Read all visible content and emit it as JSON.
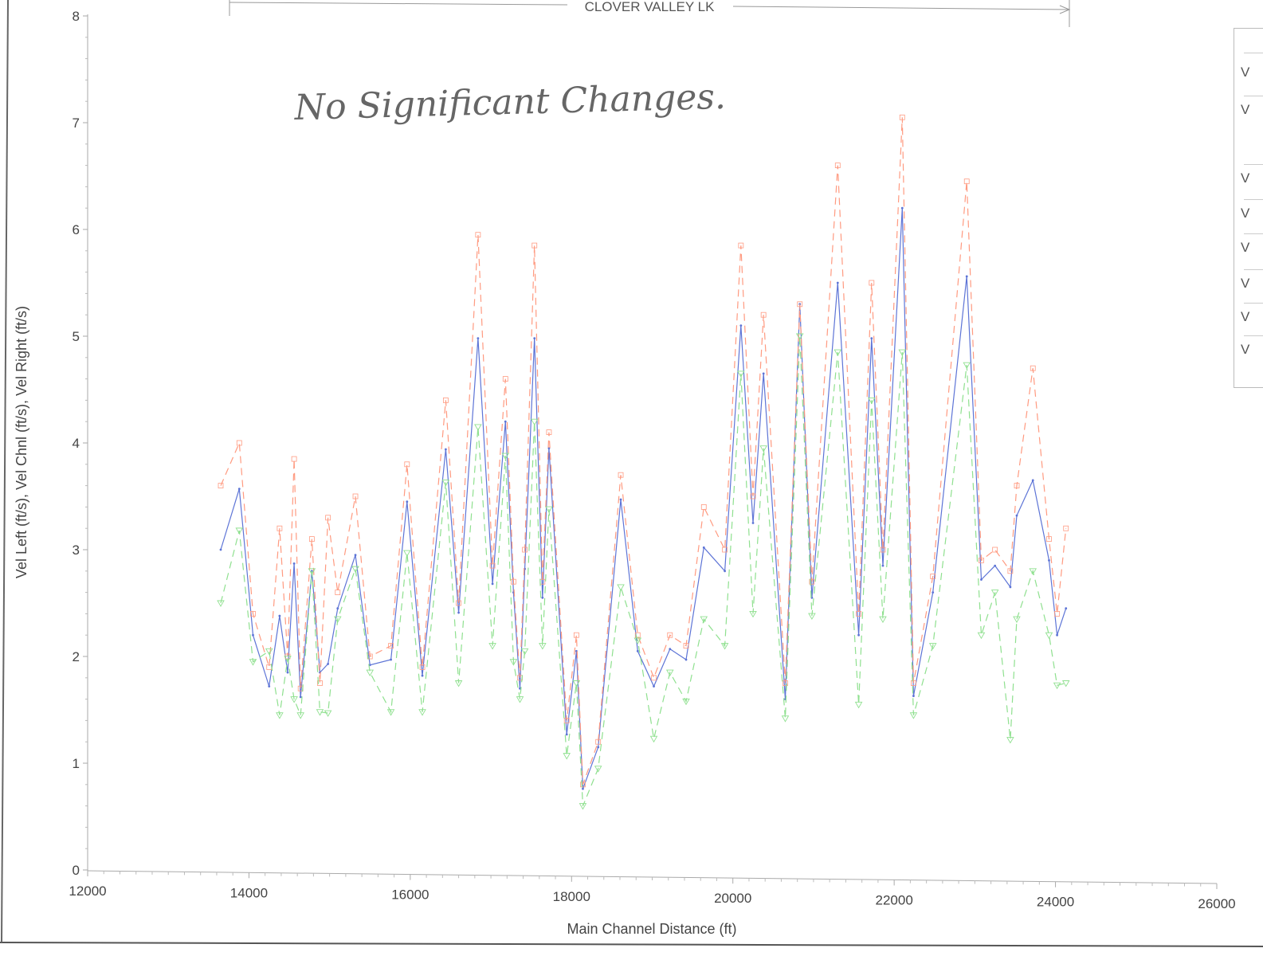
{
  "chart_data": {
    "type": "line",
    "title": "",
    "reach_label": "CLOVER VALLEY LK",
    "xlabel": "Main Channel Distance (ft)",
    "ylabel": "Vel Left (ft/s), Vel Chnl (ft/s), Vel Right (ft/s)",
    "xlim": [
      12000,
      26000
    ],
    "ylim": [
      0,
      8
    ],
    "x_ticks": [
      "12000",
      "14000",
      "16000",
      "18000",
      "20000",
      "22000",
      "24000",
      "26000"
    ],
    "y_ticks": [
      "0",
      "1",
      "2",
      "3",
      "4",
      "5",
      "6",
      "7",
      "8"
    ],
    "grid": false,
    "legend_position": "top-right (cropped)",
    "legend_visible_text": [
      "V",
      "V",
      "V",
      "V",
      "V",
      "V",
      "V",
      "V"
    ],
    "annotation": "No Significant Changes.",
    "series": [
      {
        "color": "#5d74d6",
        "style": "solid",
        "x": [
          13650,
          13880,
          14050,
          14250,
          14380,
          14480,
          14560,
          14640,
          14780,
          14880,
          14980,
          15100,
          15320,
          15500,
          15760,
          15960,
          16150,
          16440,
          16600,
          16840,
          17020,
          17180,
          17280,
          17360,
          17420,
          17540,
          17640,
          17720,
          17940,
          18060,
          18140,
          18330,
          18610,
          18820,
          19020,
          19220,
          19420,
          19640,
          19900,
          20100,
          20250,
          20380,
          20650,
          20830,
          20980,
          21300,
          21560,
          21720,
          21860,
          22100,
          22240,
          22480,
          22900,
          23080,
          23250,
          23440,
          23520,
          23720,
          23920,
          24020,
          24130
        ],
        "y": [
          3.0,
          3.57,
          2.2,
          1.72,
          2.38,
          1.85,
          2.87,
          1.62,
          2.8,
          1.85,
          1.93,
          2.45,
          2.95,
          1.92,
          1.97,
          3.45,
          1.82,
          3.94,
          2.41,
          4.98,
          2.68,
          4.2,
          2.6,
          1.7,
          2.82,
          4.98,
          2.55,
          3.95,
          1.27,
          2.05,
          0.76,
          1.15,
          3.47,
          2.05,
          1.72,
          2.07,
          1.97,
          3.02,
          2.8,
          5.1,
          3.25,
          4.65,
          1.6,
          5.3,
          2.55,
          5.5,
          2.2,
          4.98,
          2.85,
          6.2,
          1.63,
          2.6,
          5.56,
          2.72,
          2.85,
          2.65,
          3.32,
          3.65,
          2.9,
          2.2,
          2.45
        ]
      },
      {
        "color": "#ff9a80",
        "style": "dashed",
        "x": [
          13650,
          13880,
          14050,
          14250,
          14380,
          14480,
          14560,
          14640,
          14780,
          14880,
          14980,
          15100,
          15320,
          15500,
          15760,
          15960,
          16150,
          16440,
          16600,
          16840,
          17020,
          17180,
          17280,
          17360,
          17420,
          17540,
          17640,
          17720,
          17940,
          18060,
          18140,
          18330,
          18610,
          18820,
          19020,
          19220,
          19420,
          19640,
          19900,
          20100,
          20250,
          20380,
          20650,
          20830,
          20980,
          21300,
          21560,
          21720,
          21860,
          22100,
          22240,
          22480,
          22900,
          23080,
          23250,
          23440,
          23520,
          23720,
          23920,
          24020,
          24130
        ],
        "y": [
          3.6,
          4.0,
          2.4,
          1.9,
          3.2,
          2.0,
          3.85,
          1.7,
          3.1,
          1.75,
          3.3,
          2.6,
          3.5,
          2.0,
          2.1,
          3.8,
          1.9,
          4.4,
          2.5,
          5.95,
          2.85,
          4.6,
          2.7,
          1.8,
          3.0,
          5.85,
          2.7,
          4.1,
          1.4,
          2.2,
          0.8,
          1.2,
          3.7,
          2.2,
          1.8,
          2.2,
          2.1,
          3.4,
          3.0,
          5.85,
          3.5,
          5.2,
          1.75,
          5.3,
          2.7,
          6.6,
          2.4,
          5.5,
          3.0,
          7.05,
          1.75,
          2.75,
          6.45,
          2.9,
          3.0,
          2.8,
          3.6,
          4.7,
          3.1,
          2.4,
          3.2
        ]
      },
      {
        "color": "#8fe08f",
        "style": "dashed",
        "x": [
          13650,
          13880,
          14050,
          14250,
          14380,
          14480,
          14560,
          14640,
          14780,
          14880,
          14980,
          15100,
          15320,
          15500,
          15760,
          15960,
          16150,
          16440,
          16600,
          16840,
          17020,
          17180,
          17280,
          17360,
          17420,
          17540,
          17640,
          17720,
          17940,
          18060,
          18140,
          18330,
          18610,
          18820,
          19020,
          19220,
          19420,
          19640,
          19900,
          20100,
          20250,
          20380,
          20650,
          20830,
          20980,
          21300,
          21560,
          21720,
          21860,
          22100,
          22240,
          22480,
          22900,
          23080,
          23250,
          23440,
          23520,
          23720,
          23920,
          24020,
          24130
        ],
        "y": [
          2.5,
          3.18,
          1.95,
          2.05,
          1.45,
          1.98,
          1.6,
          1.45,
          2.8,
          1.48,
          1.47,
          2.35,
          2.82,
          1.85,
          1.48,
          2.97,
          1.48,
          3.63,
          1.75,
          4.15,
          2.1,
          3.88,
          1.95,
          1.6,
          2.05,
          4.2,
          2.1,
          3.38,
          1.07,
          1.75,
          0.6,
          0.95,
          2.65,
          2.15,
          1.23,
          1.85,
          1.58,
          2.35,
          2.1,
          4.65,
          2.4,
          3.95,
          1.42,
          5.0,
          2.38,
          4.85,
          1.55,
          4.4,
          2.35,
          4.85,
          1.45,
          2.1,
          4.73,
          2.2,
          2.6,
          1.22,
          2.35,
          2.8,
          2.2,
          1.73,
          1.75
        ]
      }
    ]
  }
}
